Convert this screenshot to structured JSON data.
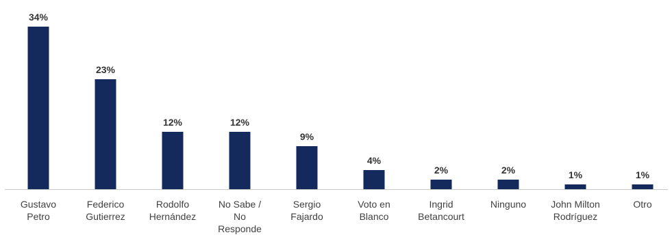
{
  "colors": {
    "bar": "#142a5c",
    "axis": "#c8c8c8",
    "value_text": "#333333",
    "category_text": "#404040"
  },
  "chart_data": {
    "type": "bar",
    "title": "",
    "xlabel": "",
    "ylabel": "",
    "ylim": [
      0,
      34
    ],
    "grid": false,
    "legend": "none",
    "categories": [
      [
        "Gustavo",
        "Petro"
      ],
      [
        "Federico",
        "Gutierrez"
      ],
      [
        "Rodolfo",
        "Hernández"
      ],
      [
        "No Sabe /",
        "No",
        "Responde"
      ],
      [
        "Sergio",
        "Fajardo"
      ],
      [
        "Voto en",
        "Blanco"
      ],
      [
        "Ingrid",
        "Betancourt"
      ],
      [
        "Ninguno"
      ],
      [
        "John Milton",
        "Rodríguez"
      ],
      [
        "Otro"
      ]
    ],
    "values": [
      34,
      23,
      12,
      12,
      9,
      4,
      2,
      2,
      1,
      1
    ],
    "value_labels": [
      "34%",
      "23%",
      "12%",
      "12%",
      "9%",
      "4%",
      "2%",
      "2%",
      "1%",
      "1%"
    ]
  }
}
